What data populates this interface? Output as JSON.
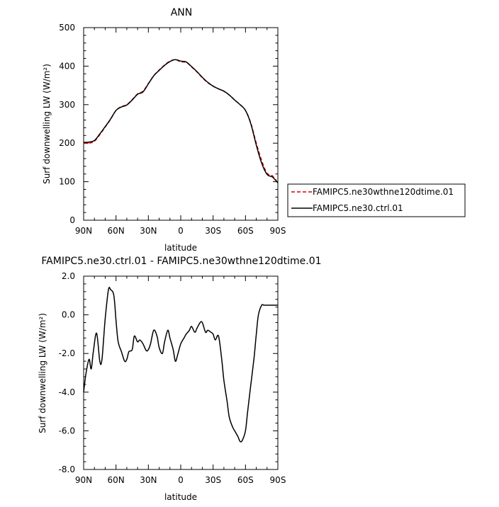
{
  "chart_data": [
    {
      "type": "line",
      "title": "ANN",
      "xlabel": "latitude",
      "ylabel": "Surf downwelling LW (W/m²)",
      "xlim": [
        90,
        -90
      ],
      "ylim": [
        0,
        500
      ],
      "x_tick_values": [
        90,
        60,
        30,
        0,
        -30,
        -60,
        -90
      ],
      "x_tick_labels": [
        "90N",
        "60N",
        "30N",
        "0",
        "30S",
        "60S",
        "90S"
      ],
      "y_tick_values": [
        0,
        100,
        200,
        300,
        400,
        500
      ],
      "y_tick_labels": [
        "0",
        "100",
        "200",
        "300",
        "400",
        "500"
      ],
      "grid": false,
      "legend_placement": "right",
      "x": [
        90,
        85,
        80,
        75,
        70,
        65,
        60,
        55,
        50,
        45,
        40,
        35,
        30,
        25,
        20,
        15,
        10,
        5,
        0,
        -5,
        -10,
        -15,
        -20,
        -25,
        -30,
        -35,
        -40,
        -45,
        -50,
        -55,
        -60,
        -65,
        -70,
        -75,
        -80,
        -85,
        -90
      ],
      "series": [
        {
          "name": "FAMIPC5.ne30wthne120dtime.01",
          "color": "#dd0000",
          "dash": "dashed",
          "values": [
            200,
            200,
            205,
            222,
            242,
            262,
            285,
            295,
            300,
            313,
            328,
            335,
            355,
            375,
            390,
            403,
            413,
            417,
            411,
            410,
            398,
            385,
            370,
            357,
            348,
            341,
            335,
            325,
            312,
            300,
            285,
            252,
            200,
            155,
            122,
            115,
            97
          ]
        },
        {
          "name": "FAMIPC5.ne30.ctrl.01",
          "color": "#000000",
          "dash": "solid",
          "values": [
            202,
            203,
            207,
            224,
            243,
            263,
            285,
            294,
            299,
            312,
            327,
            333,
            354,
            375,
            389,
            402,
            412,
            417,
            413,
            411,
            399,
            386,
            371,
            358,
            348,
            341,
            335,
            325,
            312,
            300,
            285,
            250,
            195,
            148,
            119,
            112,
            97
          ]
        }
      ]
    },
    {
      "type": "line",
      "title": "FAMIPC5.ne30.ctrl.01 - FAMIPC5.ne30wthne120dtime.01",
      "xlabel": "latitude",
      "ylabel": "Surf downwelling LW (W/m²)",
      "xlim": [
        90,
        -90
      ],
      "ylim": [
        -8,
        2
      ],
      "x_tick_values": [
        90,
        60,
        30,
        0,
        -30,
        -60,
        -90
      ],
      "x_tick_labels": [
        "90N",
        "60N",
        "30N",
        "0",
        "30S",
        "60S",
        "90S"
      ],
      "y_tick_values": [
        -8,
        -6,
        -4,
        -2,
        0,
        2
      ],
      "y_tick_labels": [
        "-8.0",
        "-6.0",
        "-4.0",
        "-2.0",
        "0.0",
        "2.0"
      ],
      "grid": false,
      "x": [
        90,
        88,
        85,
        83,
        81,
        78,
        75,
        73,
        70,
        67,
        65,
        62,
        60,
        58,
        55,
        52,
        50,
        48,
        45,
        43,
        40,
        38,
        35,
        32,
        30,
        28,
        25,
        22,
        20,
        17,
        15,
        12,
        10,
        7,
        5,
        3,
        0,
        -3,
        -5,
        -8,
        -10,
        -13,
        -15,
        -18,
        -20,
        -23,
        -25,
        -28,
        -30,
        -32,
        -35,
        -38,
        -40,
        -43,
        -45,
        -48,
        -50,
        -53,
        -55,
        -57,
        -60,
        -62,
        -65,
        -68,
        -70,
        -72,
        -75,
        -77,
        -80,
        -82,
        -85,
        -88,
        -90
      ],
      "series": [
        {
          "name": "",
          "color": "#000000",
          "dash": "solid",
          "values": [
            -4.0,
            -3.1,
            -2.3,
            -2.8,
            -1.9,
            -0.95,
            -2.4,
            -2.3,
            -0.2,
            1.3,
            1.3,
            1.0,
            -0.3,
            -1.4,
            -1.9,
            -2.4,
            -2.3,
            -1.9,
            -1.8,
            -1.1,
            -1.4,
            -1.3,
            -1.5,
            -1.85,
            -1.8,
            -1.5,
            -0.8,
            -1.1,
            -1.7,
            -2.0,
            -1.4,
            -0.8,
            -1.2,
            -1.8,
            -2.4,
            -2.1,
            -1.5,
            -1.2,
            -1.0,
            -0.8,
            -0.6,
            -0.9,
            -0.7,
            -0.4,
            -0.4,
            -0.9,
            -0.8,
            -0.9,
            -1.0,
            -1.3,
            -1.1,
            -2.3,
            -3.4,
            -4.5,
            -5.3,
            -5.8,
            -6.0,
            -6.3,
            -6.55,
            -6.5,
            -6.0,
            -5.0,
            -3.6,
            -2.2,
            -1.0,
            0.0,
            0.5,
            0.5,
            0.5,
            0.5,
            0.5,
            0.5,
            0.5
          ]
        }
      ]
    }
  ]
}
